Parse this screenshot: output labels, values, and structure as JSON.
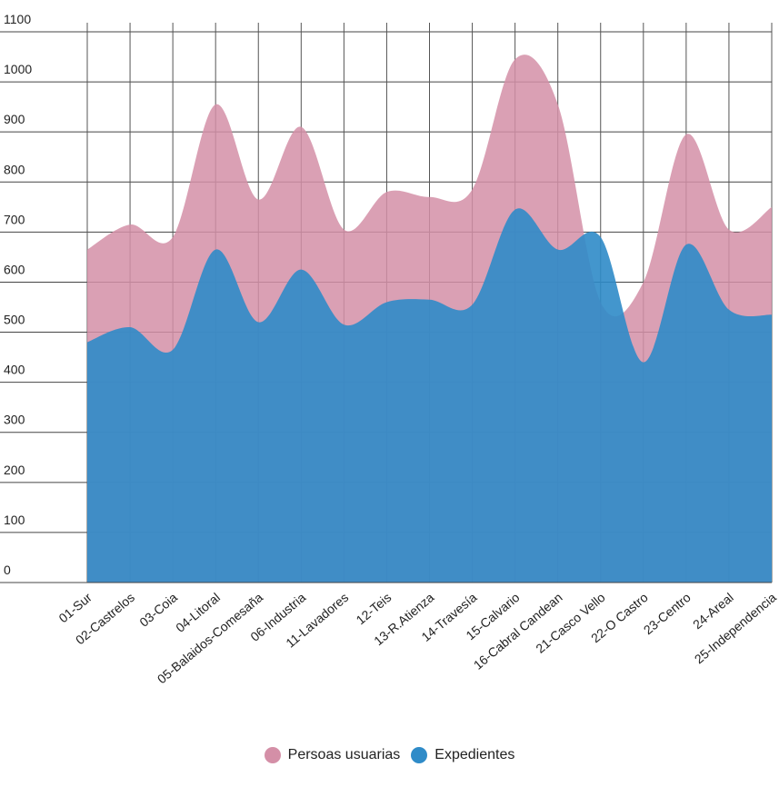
{
  "chart_data": {
    "type": "area",
    "categories": [
      "01-Sur",
      "02-Castrelos",
      "03-Coia",
      "04-Litoral",
      "05-Balaidos-Comesaña",
      "06-Industria",
      "11-Lavadores",
      "12-Teis",
      "13-R.Atienza",
      "14-Travesía",
      "15-Calvario",
      "16-Cabral Candean",
      "21-Casco Vello",
      "22-O Castro",
      "23-Centro",
      "24-Areal",
      "25-Independencia"
    ],
    "series": [
      {
        "name": "Persoas usuarias",
        "color": "#d48fa7",
        "values": [
          665,
          715,
          690,
          955,
          765,
          910,
          705,
          780,
          770,
          785,
          1045,
          955,
          560,
          600,
          895,
          705,
          750
        ]
      },
      {
        "name": "Expedientes",
        "color": "#2f8bc8",
        "values": [
          480,
          510,
          465,
          665,
          520,
          625,
          515,
          560,
          565,
          555,
          745,
          665,
          690,
          440,
          675,
          545,
          535
        ]
      }
    ],
    "yticks": [
      0,
      100,
      200,
      300,
      400,
      500,
      600,
      700,
      800,
      900,
      1000,
      1100
    ],
    "ylim": [
      0,
      1100
    ]
  }
}
